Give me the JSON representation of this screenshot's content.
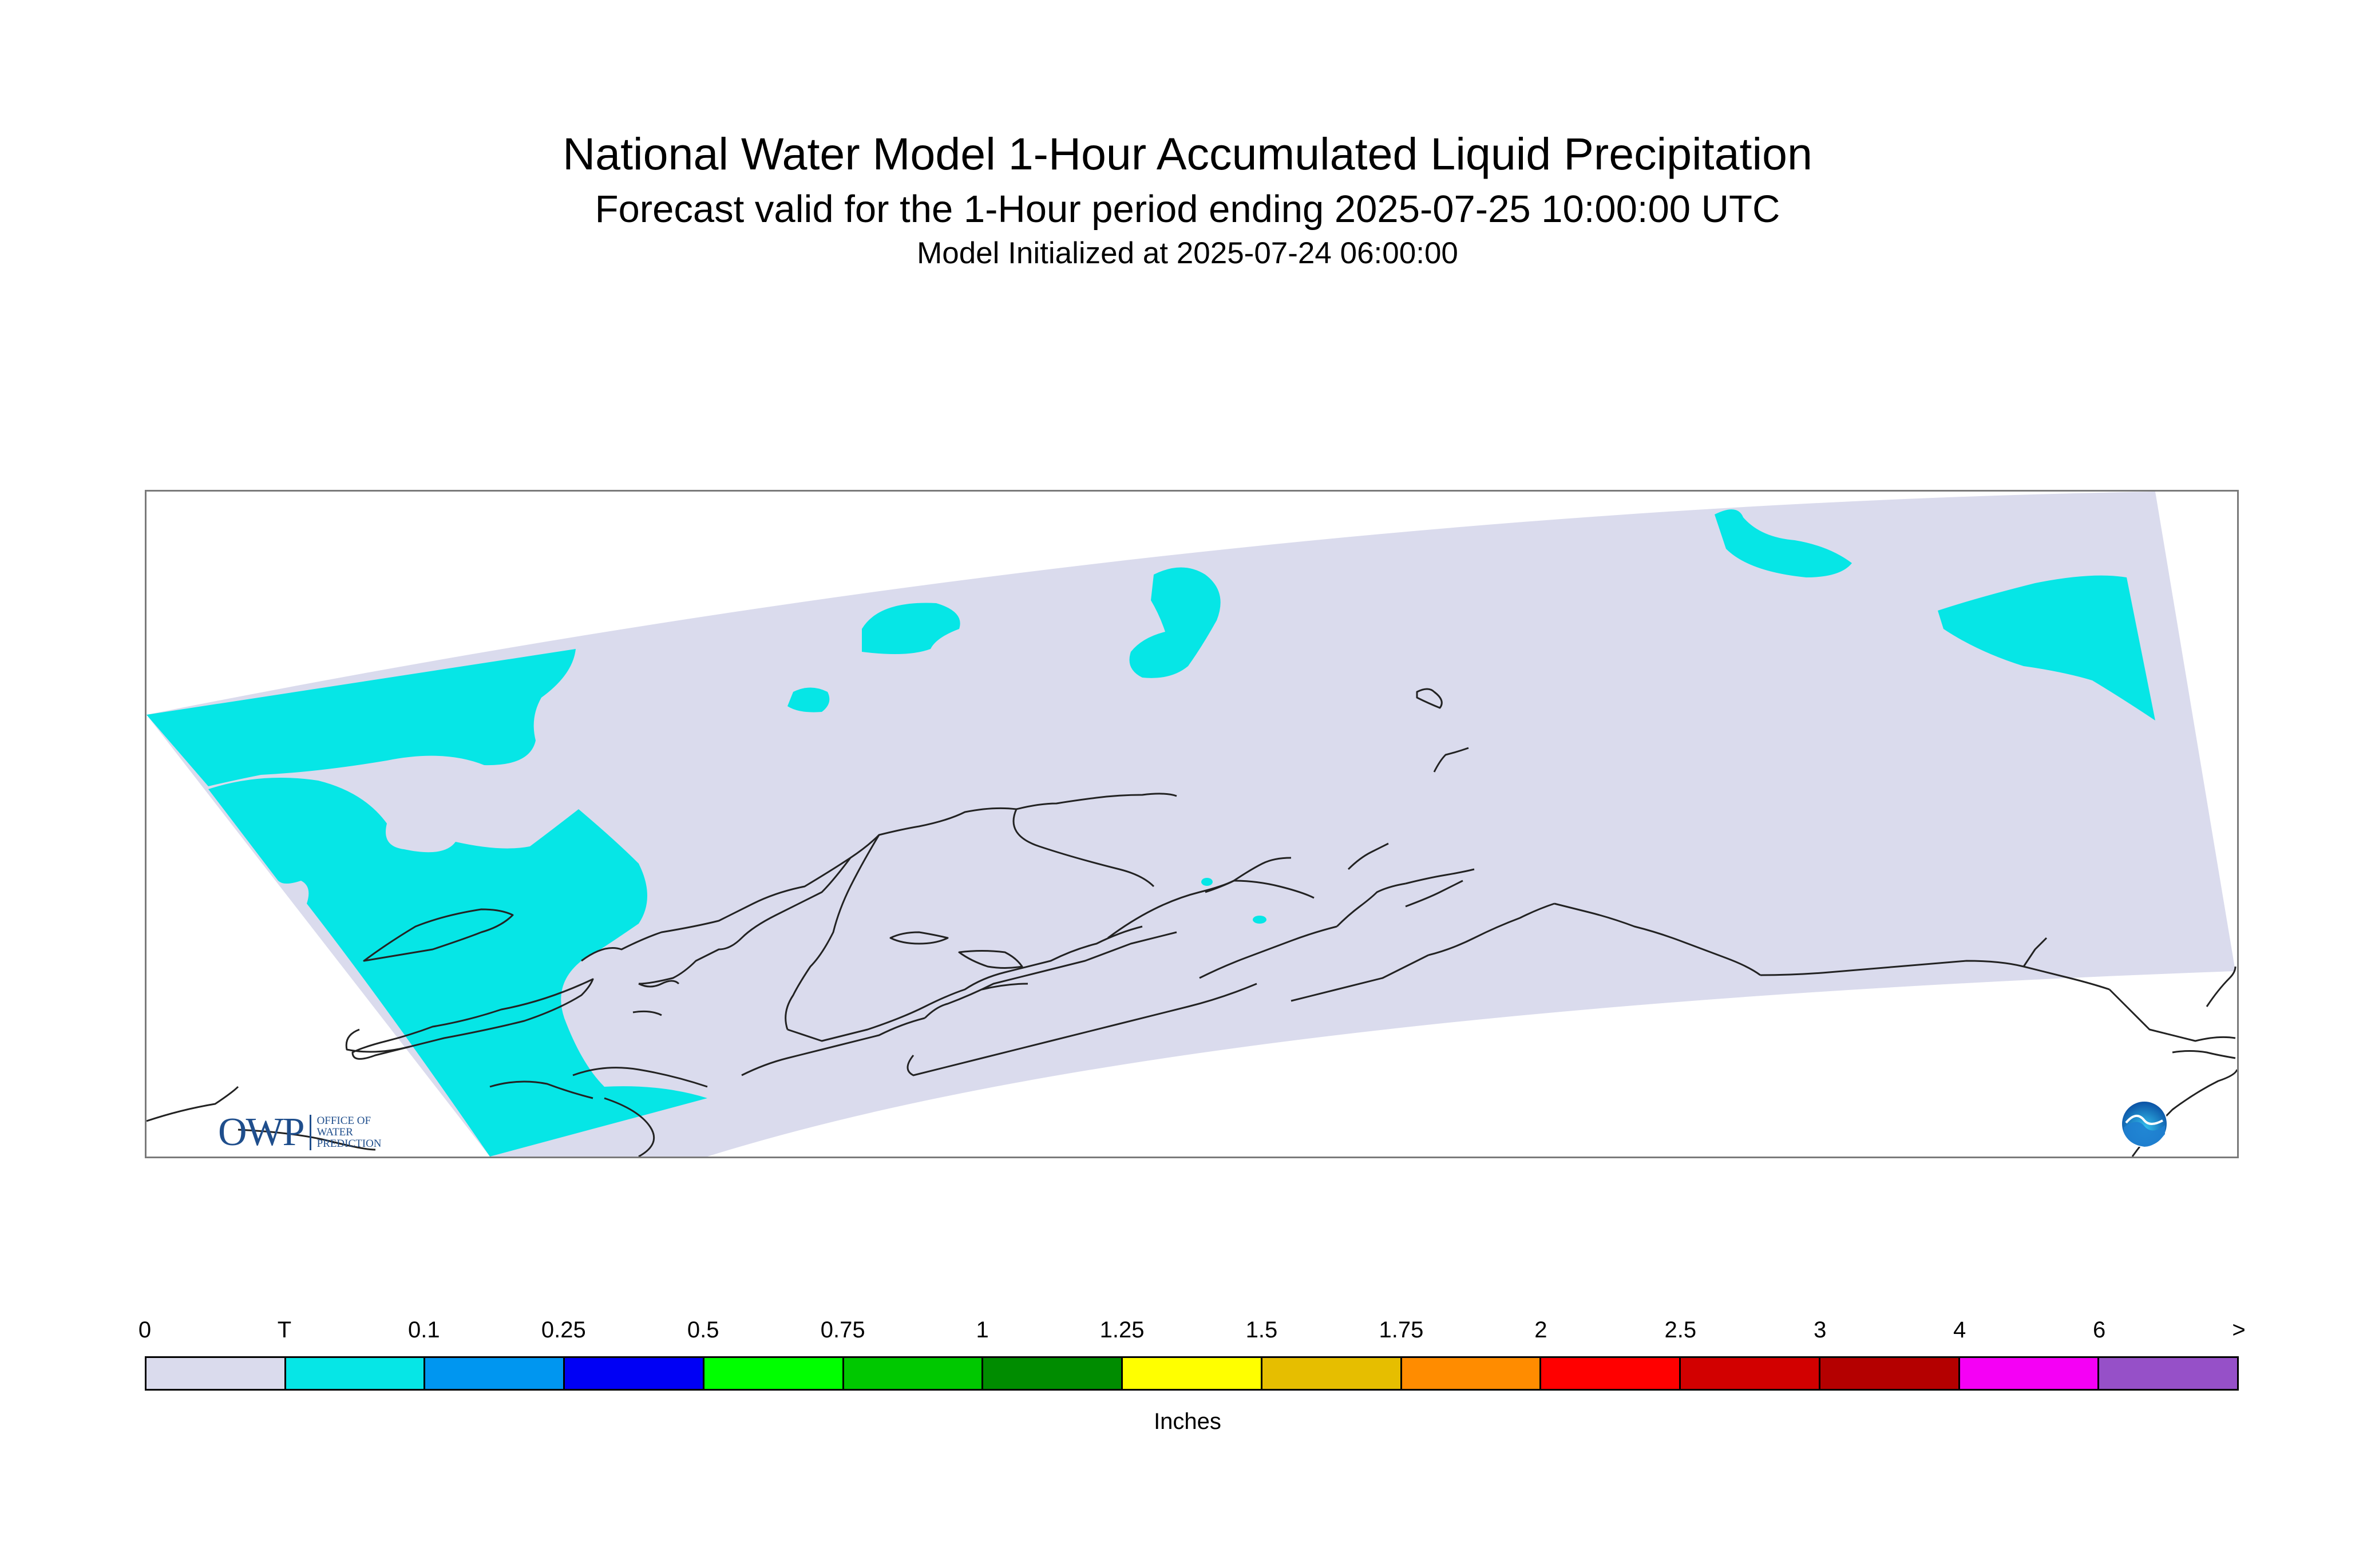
{
  "header": {
    "title": "National Water Model 1-Hour Accumulated Liquid Precipitation",
    "subtitle": "Forecast valid for the 1-Hour period ending 2025-07-25 10:00:00 UTC",
    "initialized": "Model Initialized at 2025-07-24 06:00:00"
  },
  "map": {
    "domain_color": "#dadbed",
    "precip_trace_color": "#06e6e6",
    "coastline_color": "#222222",
    "logos": {
      "owp": {
        "letters": "OWP",
        "line1": "OFFICE OF",
        "line2": "WATER",
        "line3": "PREDICTION"
      },
      "noaa": {
        "icon": "noaa-logo-icon"
      }
    }
  },
  "legend": {
    "units": "Inches",
    "labels": [
      "0",
      "T",
      "0.1",
      "0.25",
      "0.5",
      "0.75",
      "1",
      "1.25",
      "1.5",
      "1.75",
      "2",
      "2.5",
      "3",
      "4",
      "6",
      ">"
    ],
    "colors": [
      "#dadbed",
      "#06e6e6",
      "#0096f0",
      "#0000f5",
      "#00ff00",
      "#00c800",
      "#008c00",
      "#ffff00",
      "#e6be00",
      "#ff8c00",
      "#ff0000",
      "#d20000",
      "#b40000",
      "#f500f5",
      "#9650c8"
    ]
  }
}
